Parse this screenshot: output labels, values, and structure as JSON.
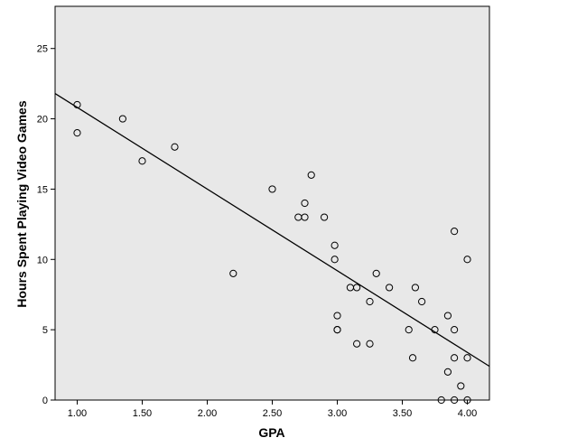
{
  "chart_data": {
    "type": "scatter",
    "xlabel": "GPA",
    "ylabel": "Hours Spent Playing Video Games",
    "xlim": [
      0.83,
      4.17
    ],
    "ylim": [
      0,
      28
    ],
    "x_ticks": [
      1.0,
      1.5,
      2.0,
      2.5,
      3.0,
      3.5,
      4.0
    ],
    "x_tick_labels": [
      "1.00",
      "1.50",
      "2.00",
      "2.50",
      "3.00",
      "3.50",
      "4.00"
    ],
    "y_ticks": [
      0,
      5,
      10,
      15,
      20,
      25
    ],
    "y_tick_labels": [
      "0",
      "5",
      "10",
      "15",
      "20",
      "25"
    ],
    "grid": false,
    "plot_background": "#e8e8e8",
    "point_style": "hollow-circle",
    "fit_line": {
      "type": "linear",
      "x": [
        0.83,
        4.17
      ],
      "y": [
        21.8,
        2.4
      ]
    },
    "series": [
      {
        "points": [
          [
            1.0,
            21
          ],
          [
            1.0,
            19
          ],
          [
            1.35,
            20
          ],
          [
            1.5,
            17
          ],
          [
            1.75,
            18
          ],
          [
            2.2,
            9
          ],
          [
            2.5,
            15
          ],
          [
            2.7,
            13
          ],
          [
            2.75,
            13
          ],
          [
            2.75,
            14
          ],
          [
            2.8,
            16
          ],
          [
            2.9,
            13
          ],
          [
            2.98,
            11
          ],
          [
            2.98,
            10
          ],
          [
            3.0,
            6
          ],
          [
            3.0,
            5
          ],
          [
            3.0,
            5
          ],
          [
            3.1,
            8
          ],
          [
            3.15,
            8
          ],
          [
            3.15,
            4
          ],
          [
            3.25,
            4
          ],
          [
            3.25,
            7
          ],
          [
            3.3,
            9
          ],
          [
            3.4,
            8
          ],
          [
            3.55,
            5
          ],
          [
            3.58,
            3
          ],
          [
            3.6,
            8
          ],
          [
            3.65,
            7
          ],
          [
            3.75,
            5
          ],
          [
            3.8,
            0
          ],
          [
            3.85,
            6
          ],
          [
            3.85,
            2
          ],
          [
            3.9,
            12
          ],
          [
            3.9,
            5
          ],
          [
            3.9,
            3
          ],
          [
            3.9,
            0
          ],
          [
            3.95,
            1
          ],
          [
            4.0,
            10
          ],
          [
            4.0,
            3
          ],
          [
            4.0,
            0
          ]
        ]
      }
    ]
  }
}
